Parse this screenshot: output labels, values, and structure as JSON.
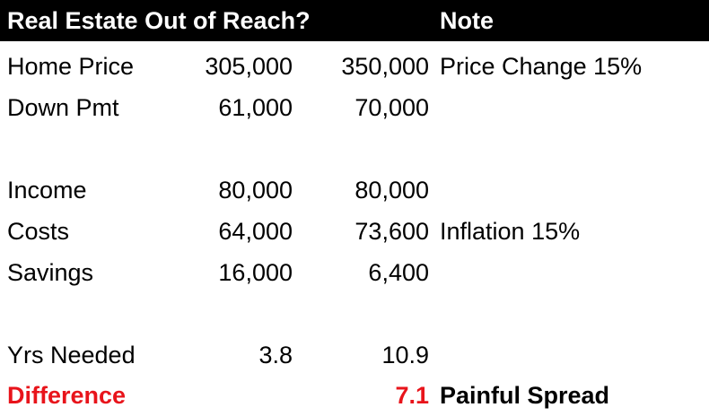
{
  "header": {
    "title": "Real Estate Out of Reach?",
    "note": "Note"
  },
  "rows": [
    {
      "label": "Home Price",
      "v1": "305,000",
      "v2": "350,000",
      "note": "Price Change 15%"
    },
    {
      "label": "Down Pmt",
      "v1": "61,000",
      "v2": "70,000",
      "note": ""
    },
    {
      "label": "",
      "v1": "",
      "v2": "",
      "note": ""
    },
    {
      "label": "Income",
      "v1": "80,000",
      "v2": "80,000",
      "note": ""
    },
    {
      "label": "Costs",
      "v1": "64,000",
      "v2": "73,600",
      "note": "Inflation 15%"
    },
    {
      "label": "Savings",
      "v1": "16,000",
      "v2": "6,400",
      "note": ""
    },
    {
      "label": "",
      "v1": "",
      "v2": "",
      "note": ""
    },
    {
      "label": "Yrs Needed",
      "v1": "3.8",
      "v2": "10.9",
      "note": ""
    },
    {
      "label": "Difference",
      "v1": "",
      "v2": "7.1",
      "note": "Painful Spread"
    }
  ],
  "colors": {
    "header_bg": "#000000",
    "header_text": "#ffffff",
    "highlight": "#e8141b"
  }
}
